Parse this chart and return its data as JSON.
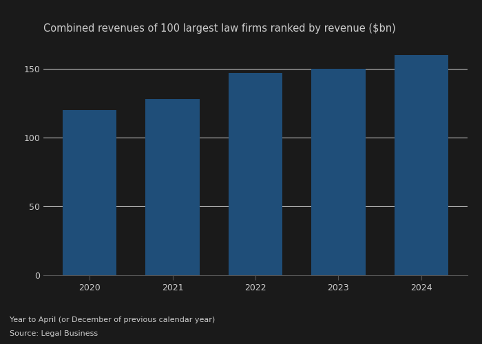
{
  "categories": [
    "2020",
    "2021",
    "2022",
    "2023",
    "2024"
  ],
  "values": [
    120,
    128,
    147,
    150,
    160
  ],
  "bar_color": "#1f4e79",
  "title": "Combined revenues of 100 largest law firms ranked by revenue ($bn)",
  "title_fontsize": 10.5,
  "yticks": [
    0,
    50,
    100,
    150
  ],
  "ylim": [
    0,
    170
  ],
  "footnote_line1": "Year to April (or December of previous calendar year)",
  "footnote_line2": "Source: Legal Business",
  "background_color": "#1a1a1a",
  "axes_facecolor": "#1a1a1a",
  "grid_color": "#ffffff",
  "text_color": "#cccccc",
  "tick_color": "#cccccc",
  "spine_color": "#555555"
}
